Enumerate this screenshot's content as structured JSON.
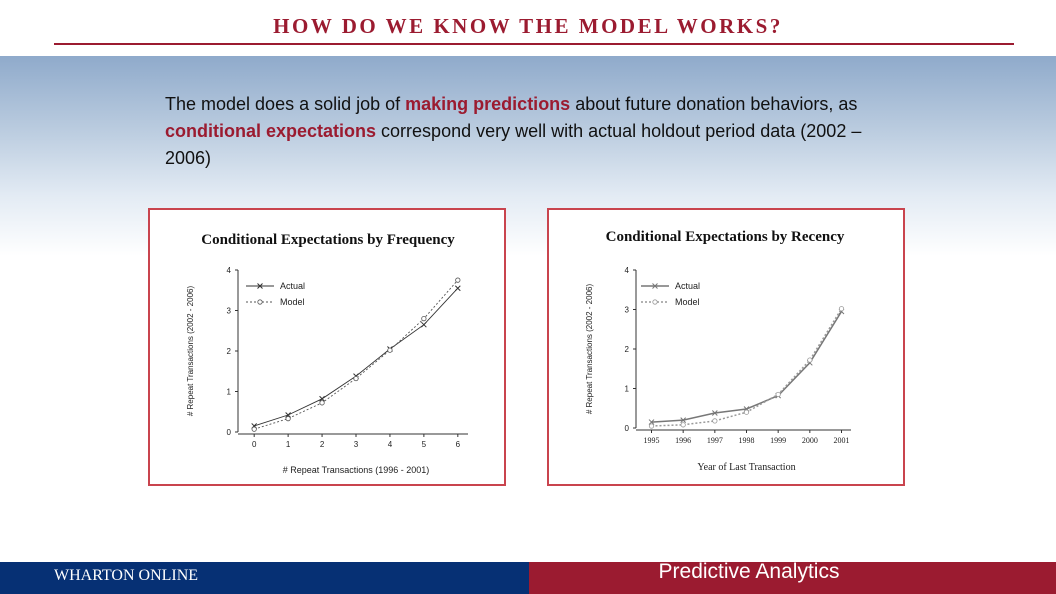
{
  "slide": {
    "title": "HOW DO WE KNOW THE MODEL WORKS?",
    "intro": {
      "t1": "The model does a solid job of ",
      "h1": "making predictions",
      "t2": " about future donation behaviors, as ",
      "h2": "conditional expectations",
      "t3": " correspond very well with actual holdout period data (2002 – 2006)"
    }
  },
  "footer": {
    "brand": "WHARTON ONLINE",
    "course": "Predictive Analytics"
  },
  "colors": {
    "accent": "#9b1b30",
    "navy": "#063074",
    "panel_border": "#c9444e"
  },
  "chart_data": [
    {
      "type": "line",
      "title": "Conditional Expectations by Frequency",
      "xlabel": "# Repeat Transactions (1996 - 2001)",
      "ylabel": "# Repeat Transactions (2002 - 2006)",
      "x": [
        0,
        1,
        2,
        3,
        4,
        5,
        6
      ],
      "xlim": [
        -0.3,
        6.3
      ],
      "ylim": [
        0,
        4
      ],
      "yticks": [
        0,
        1,
        2,
        3,
        4
      ],
      "grid": false,
      "legend": "top-left",
      "series": [
        {
          "name": "Actual",
          "marker": "x",
          "values": [
            0.15,
            0.42,
            0.82,
            1.38,
            2.05,
            2.65,
            3.55
          ]
        },
        {
          "name": "Model",
          "marker": "o",
          "values": [
            0.07,
            0.33,
            0.72,
            1.32,
            2.02,
            2.8,
            3.75
          ]
        }
      ]
    },
    {
      "type": "line",
      "title": "Conditional Expectations by Recency",
      "xlabel": "Year of Last Transaction",
      "ylabel": "# Repeat Transactions (2002 - 2006)",
      "x": [
        "1995",
        "1996",
        "1997",
        "1998",
        "1999",
        "2000",
        "2001"
      ],
      "ylim": [
        0,
        4
      ],
      "yticks": [
        0,
        1,
        2,
        3,
        4
      ],
      "grid": false,
      "legend": "top-left",
      "series": [
        {
          "name": "Actual",
          "marker": "x",
          "values": [
            0.15,
            0.2,
            0.38,
            0.48,
            0.82,
            1.65,
            2.95
          ]
        },
        {
          "name": "Model",
          "marker": "o",
          "values": [
            0.05,
            0.08,
            0.18,
            0.4,
            0.85,
            1.72,
            3.02
          ]
        }
      ]
    }
  ]
}
